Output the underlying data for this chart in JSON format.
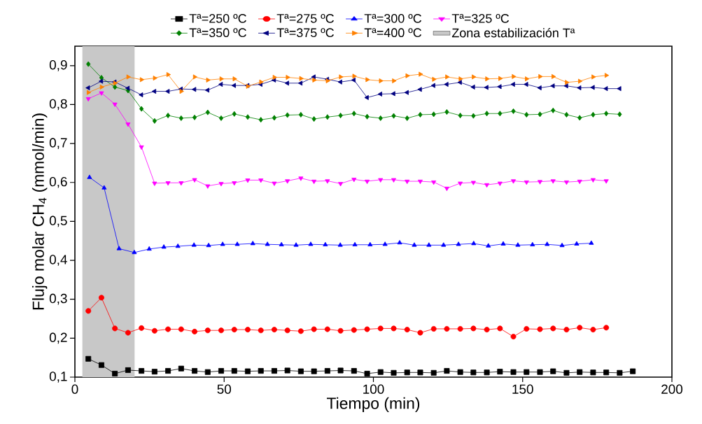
{
  "chart_data": {
    "type": "line",
    "xlabel": "Tiempo (min)",
    "ylabel": "Flujo molar CH$_{4}$ (mmol/min)",
    "xlim": [
      0,
      200
    ],
    "ylim": [
      0.1,
      0.95
    ],
    "xticks": [
      0,
      50,
      100,
      150,
      200
    ],
    "yticks": [
      {
        "value": 0.1,
        "label": "0,1"
      },
      {
        "value": 0.2,
        "label": "0,2"
      },
      {
        "value": 0.3,
        "label": "0,3"
      },
      {
        "value": 0.4,
        "label": "0,4"
      },
      {
        "value": 0.5,
        "label": "0,5"
      },
      {
        "value": 0.6,
        "label": "0,6"
      },
      {
        "value": 0.7,
        "label": "0,7"
      },
      {
        "value": 0.8,
        "label": "0,8"
      },
      {
        "value": 0.9,
        "label": "0,9"
      }
    ],
    "legend": "top",
    "bands": [
      {
        "axis": "x",
        "from": 2.5,
        "to": 20,
        "label": "Zona estabilización Tª",
        "color": "#c8c8c8"
      }
    ],
    "series": [
      {
        "name": "Tª=250 ºC",
        "color": "#000000",
        "marker": "square",
        "x": [
          4.5,
          8.9,
          13.4,
          17.8,
          22.3,
          26.7,
          31.2,
          35.6,
          40.1,
          44.5,
          49.0,
          53.4,
          57.9,
          62.3,
          66.8,
          71.2,
          75.7,
          80.1,
          84.6,
          89.0,
          93.5,
          97.9,
          102.4,
          106.8,
          111.3,
          115.7,
          120.2,
          124.6,
          129.1,
          133.5,
          138.0,
          142.4,
          146.9,
          151.3,
          155.8,
          160.2,
          164.7,
          169.1,
          173.6,
          178.0,
          182.5,
          186.9
        ],
        "values": [
          0.147,
          0.131,
          0.109,
          0.118,
          0.116,
          0.114,
          0.116,
          0.122,
          0.116,
          0.113,
          0.116,
          0.116,
          0.115,
          0.116,
          0.116,
          0.117,
          0.115,
          0.115,
          0.116,
          0.117,
          0.116,
          0.109,
          0.113,
          0.111,
          0.112,
          0.112,
          0.111,
          0.116,
          0.113,
          0.112,
          0.112,
          0.114,
          0.113,
          0.113,
          0.113,
          0.115,
          0.111,
          0.113,
          0.112,
          0.112,
          0.111,
          0.115
        ]
      },
      {
        "name": "Tª=275 ºC",
        "color": "#ff0000",
        "marker": "circle",
        "x": [
          4.5,
          8.9,
          13.4,
          17.8,
          22.3,
          26.7,
          31.2,
          35.6,
          40.1,
          44.5,
          49.0,
          53.4,
          57.9,
          62.3,
          66.8,
          71.2,
          75.7,
          80.1,
          84.6,
          89.0,
          93.5,
          97.9,
          102.4,
          106.8,
          111.3,
          115.7,
          120.2,
          124.6,
          129.1,
          133.5,
          138.0,
          142.4,
          146.9,
          151.3,
          155.8,
          160.2,
          164.7,
          169.1,
          173.6,
          178.0
        ],
        "values": [
          0.27,
          0.304,
          0.225,
          0.214,
          0.226,
          0.219,
          0.223,
          0.223,
          0.217,
          0.22,
          0.22,
          0.222,
          0.222,
          0.22,
          0.222,
          0.22,
          0.218,
          0.223,
          0.223,
          0.219,
          0.221,
          0.223,
          0.225,
          0.225,
          0.222,
          0.214,
          0.224,
          0.224,
          0.224,
          0.225,
          0.222,
          0.225,
          0.204,
          0.224,
          0.223,
          0.225,
          0.222,
          0.227,
          0.222,
          0.227
        ]
      },
      {
        "name": "Tª=300 ºC",
        "color": "#0000ff",
        "marker": "triangle",
        "x": [
          4.9,
          9.8,
          14.8,
          19.9,
          24.9,
          29.8,
          34.5,
          39.9,
          44.8,
          49.5,
          54.4,
          59.6,
          64.5,
          69.2,
          74.1,
          79.0,
          83.9,
          88.9,
          93.8,
          98.9,
          103.9,
          108.8,
          113.7,
          118.6,
          123.5,
          128.5,
          133.6,
          138.5,
          143.5,
          148.4,
          153.3,
          158.2,
          163.2,
          168.1,
          173.0
        ],
        "values": [
          0.613,
          0.586,
          0.43,
          0.42,
          0.429,
          0.434,
          0.436,
          0.439,
          0.438,
          0.441,
          0.441,
          0.443,
          0.441,
          0.44,
          0.439,
          0.441,
          0.44,
          0.439,
          0.44,
          0.44,
          0.441,
          0.445,
          0.439,
          0.439,
          0.439,
          0.441,
          0.443,
          0.437,
          0.442,
          0.439,
          0.44,
          0.441,
          0.438,
          0.442,
          0.444
        ]
      },
      {
        "name": "Tª=325 ºC",
        "color": "#ff00ff",
        "marker": "triangle-down",
        "x": [
          4.5,
          8.9,
          13.4,
          17.8,
          22.3,
          26.7,
          31.2,
          35.6,
          40.1,
          44.5,
          49.0,
          53.4,
          57.9,
          62.3,
          66.8,
          71.2,
          75.7,
          80.1,
          84.6,
          89.0,
          93.5,
          97.9,
          102.4,
          106.8,
          111.3,
          115.7,
          120.2,
          124.6,
          129.1,
          133.5,
          138.0,
          142.4,
          146.9,
          151.3,
          155.8,
          160.2,
          164.7,
          169.1,
          173.6,
          178.0
        ],
        "values": [
          0.815,
          0.83,
          0.801,
          0.75,
          0.691,
          0.598,
          0.599,
          0.599,
          0.607,
          0.591,
          0.597,
          0.599,
          0.606,
          0.606,
          0.598,
          0.604,
          0.611,
          0.603,
          0.604,
          0.597,
          0.608,
          0.603,
          0.607,
          0.607,
          0.603,
          0.603,
          0.601,
          0.585,
          0.598,
          0.6,
          0.594,
          0.598,
          0.604,
          0.601,
          0.602,
          0.604,
          0.601,
          0.603,
          0.607,
          0.604
        ]
      },
      {
        "name": "Tª=350 ºC",
        "color": "#008000",
        "marker": "diamond",
        "x": [
          4.5,
          8.9,
          13.4,
          17.8,
          22.3,
          26.7,
          31.2,
          35.6,
          40.1,
          44.5,
          49.0,
          53.4,
          57.9,
          62.3,
          66.8,
          71.2,
          75.7,
          80.1,
          84.6,
          89.0,
          93.5,
          97.9,
          102.4,
          106.8,
          111.3,
          115.7,
          120.2,
          124.6,
          129.1,
          133.5,
          138.0,
          142.4,
          146.9,
          151.3,
          155.8,
          160.2,
          164.7,
          169.1,
          173.6,
          178.0,
          182.5
        ],
        "values": [
          0.904,
          0.869,
          0.845,
          0.836,
          0.789,
          0.758,
          0.772,
          0.765,
          0.767,
          0.78,
          0.765,
          0.776,
          0.768,
          0.761,
          0.766,
          0.773,
          0.774,
          0.763,
          0.768,
          0.772,
          0.777,
          0.769,
          0.765,
          0.771,
          0.765,
          0.774,
          0.775,
          0.781,
          0.772,
          0.771,
          0.777,
          0.777,
          0.783,
          0.774,
          0.775,
          0.785,
          0.774,
          0.766,
          0.774,
          0.777,
          0.775
        ]
      },
      {
        "name": "Tª=375 ºC",
        "color": "#000080",
        "marker": "triangle-left",
        "x": [
          4.5,
          8.9,
          13.4,
          17.8,
          22.3,
          26.7,
          31.2,
          35.6,
          40.1,
          44.5,
          49.0,
          53.4,
          57.9,
          62.3,
          66.8,
          71.2,
          75.7,
          80.1,
          84.6,
          89.0,
          93.5,
          97.9,
          102.4,
          106.8,
          111.3,
          115.7,
          120.2,
          124.6,
          129.1,
          133.5,
          138.0,
          142.4,
          146.9,
          151.3,
          155.8,
          160.2,
          164.7,
          169.1,
          173.6,
          178.0,
          182.5
        ],
        "values": [
          0.843,
          0.86,
          0.858,
          0.842,
          0.825,
          0.834,
          0.834,
          0.84,
          0.839,
          0.837,
          0.852,
          0.849,
          0.849,
          0.852,
          0.863,
          0.855,
          0.855,
          0.871,
          0.865,
          0.858,
          0.863,
          0.818,
          0.827,
          0.828,
          0.831,
          0.839,
          0.849,
          0.852,
          0.857,
          0.845,
          0.844,
          0.846,
          0.852,
          0.852,
          0.843,
          0.848,
          0.848,
          0.843,
          0.844,
          0.841,
          0.841
        ]
      },
      {
        "name": "Tª=400 ºC",
        "color": "#ff8000",
        "marker": "triangle-right",
        "x": [
          4.5,
          8.9,
          13.4,
          17.8,
          22.3,
          26.7,
          31.2,
          35.6,
          40.1,
          44.5,
          49.0,
          53.4,
          57.9,
          62.3,
          66.8,
          71.2,
          75.7,
          80.1,
          84.6,
          89.0,
          93.5,
          97.9,
          102.4,
          106.8,
          111.3,
          115.7,
          120.2,
          124.6,
          129.1,
          133.5,
          138.0,
          142.4,
          146.9,
          151.3,
          155.8,
          160.2,
          164.7,
          169.1,
          173.6,
          178.0
        ],
        "values": [
          0.831,
          0.845,
          0.855,
          0.871,
          0.864,
          0.868,
          0.877,
          0.834,
          0.871,
          0.863,
          0.866,
          0.866,
          0.847,
          0.858,
          0.87,
          0.87,
          0.867,
          0.863,
          0.861,
          0.871,
          0.873,
          0.864,
          0.861,
          0.861,
          0.874,
          0.878,
          0.865,
          0.871,
          0.866,
          0.871,
          0.866,
          0.867,
          0.872,
          0.866,
          0.872,
          0.872,
          0.857,
          0.86,
          0.871,
          0.875
        ]
      }
    ]
  }
}
